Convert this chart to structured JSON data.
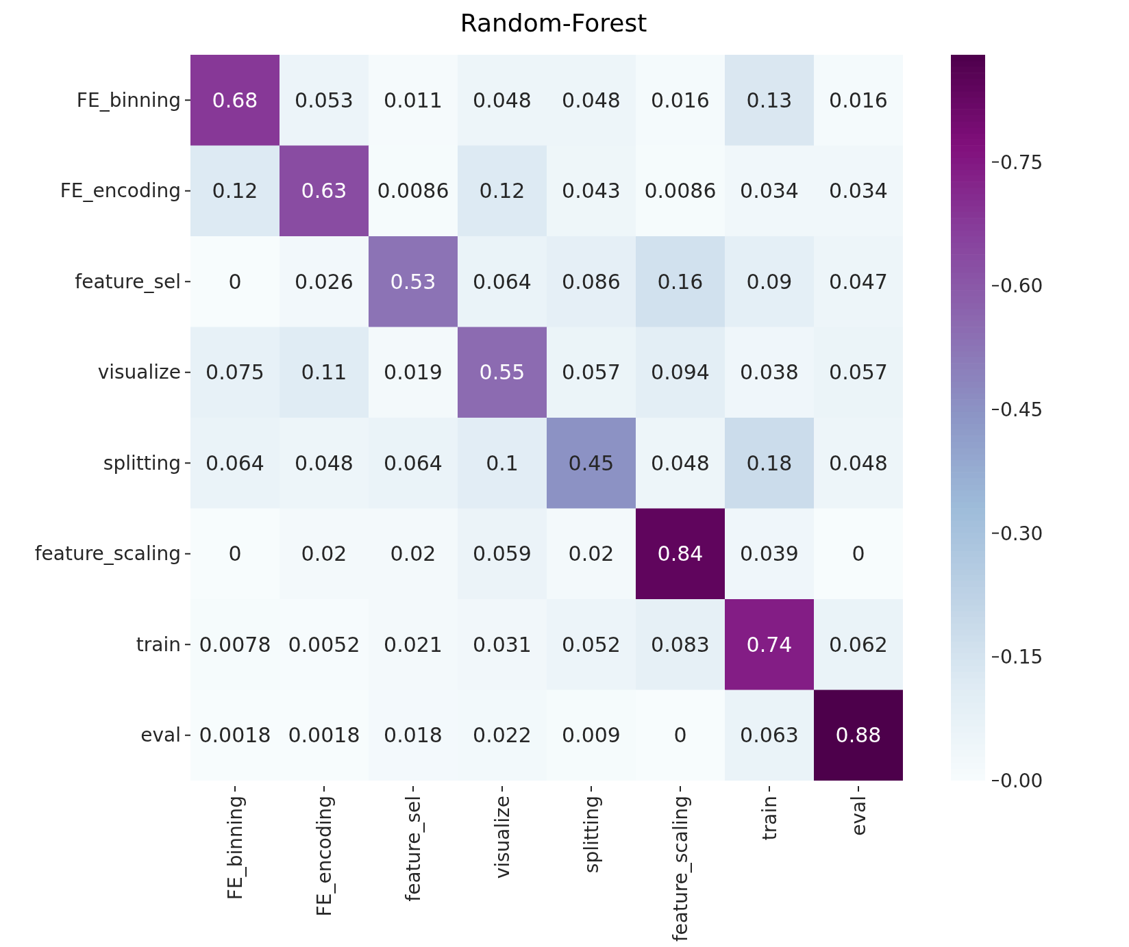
{
  "chart_data": {
    "type": "heatmap",
    "title": "Random-Forest",
    "categories": [
      "FE_binning",
      "FE_encoding",
      "feature_sel",
      "visualize",
      "splitting",
      "feature_scaling",
      "train",
      "eval"
    ],
    "y_categories": [
      "FE_binning",
      "FE_encoding",
      "feature_sel",
      "visualize",
      "splitting",
      "feature_scaling",
      "train",
      "eval"
    ],
    "cells": [
      [
        0.68,
        0.053,
        0.011,
        0.048,
        0.048,
        0.016,
        0.13,
        0.016
      ],
      [
        0.12,
        0.63,
        0.0086,
        0.12,
        0.043,
        0.0086,
        0.034,
        0.034
      ],
      [
        0,
        0.026,
        0.53,
        0.064,
        0.086,
        0.16,
        0.09,
        0.047
      ],
      [
        0.075,
        0.11,
        0.019,
        0.55,
        0.057,
        0.094,
        0.038,
        0.057
      ],
      [
        0.064,
        0.048,
        0.064,
        0.1,
        0.45,
        0.048,
        0.18,
        0.048
      ],
      [
        0,
        0.02,
        0.02,
        0.059,
        0.02,
        0.84,
        0.039,
        0
      ],
      [
        0.0078,
        0.0052,
        0.021,
        0.031,
        0.052,
        0.083,
        0.74,
        0.062
      ],
      [
        0.0018,
        0.0018,
        0.018,
        0.022,
        0.009,
        0,
        0.063,
        0.88
      ]
    ],
    "data_labels": true,
    "clim": [
      0,
      0.88
    ],
    "cticks": [
      {
        "value": 0,
        "label": "0.00"
      },
      {
        "value": 0.15,
        "label": "0.15"
      },
      {
        "value": 0.3,
        "label": "0.30"
      },
      {
        "value": 0.45,
        "label": "0.45"
      },
      {
        "value": 0.6,
        "label": "0.60"
      },
      {
        "value": 0.75,
        "label": "0.75"
      }
    ]
  }
}
